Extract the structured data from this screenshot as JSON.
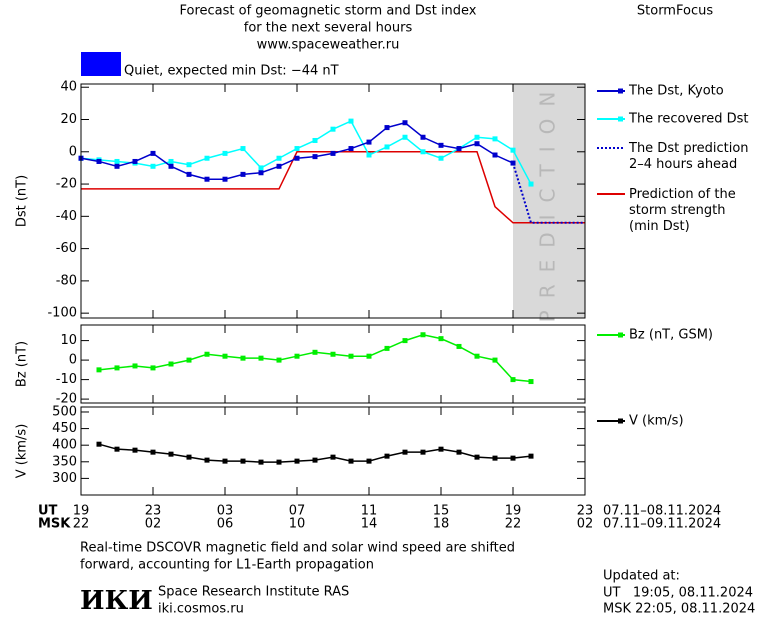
{
  "header": {
    "title": [
      "Forecast of geomagnetic storm and Dst index",
      "for the next several hours",
      "www.spaceweather.ru"
    ],
    "brand": "StormFocus",
    "status": {
      "label": "Quiet, expected min Dst: −44 nT",
      "color": "#0000ff"
    }
  },
  "chart_data": [
    {
      "type": "line",
      "ylabel": "Dst (nT)",
      "xlim": [
        0,
        28
      ],
      "ylim": [
        -103,
        42
      ],
      "yticks": [
        40,
        20,
        0,
        -20,
        -40,
        -60,
        -80,
        -100
      ],
      "shade": {
        "x": [
          24,
          28
        ],
        "label": "PREDICTION",
        "color": "#d9d9d9"
      },
      "series": [
        {
          "name": "The Dst, Kyoto",
          "color": "#0000cc",
          "marker": "square",
          "x": [
            0,
            1,
            2,
            3,
            4,
            5,
            6,
            7,
            8,
            9,
            10,
            11,
            12,
            13,
            14,
            15,
            16,
            17,
            18,
            19,
            20,
            21,
            22,
            23,
            24
          ],
          "values": [
            -4,
            -6,
            -9,
            -6,
            -1,
            -9,
            -14,
            -17,
            -17,
            -14,
            -13,
            -9,
            -4,
            -3,
            -1,
            2,
            6,
            15,
            18,
            9,
            4,
            2,
            5,
            -2,
            -7
          ]
        },
        {
          "name": "The recovered Dst",
          "color": "#00ffff",
          "marker": "square",
          "x": [
            0,
            1,
            2,
            3,
            4,
            5,
            6,
            7,
            8,
            9,
            10,
            11,
            12,
            13,
            14,
            15,
            16,
            17,
            18,
            19,
            20,
            21,
            22,
            23,
            24,
            25
          ],
          "values": [
            -4,
            -5,
            -6,
            -7,
            -9,
            -6,
            -8,
            -4,
            -1,
            2,
            -10,
            -4,
            2,
            7,
            14,
            19,
            -2,
            3,
            9,
            0,
            -4,
            2,
            9,
            8,
            1,
            -20
          ]
        },
        {
          "name": "The Dst prediction\n2–4 hours ahead",
          "color": "#0000cc",
          "dash": "dotted",
          "x": [
            24,
            25,
            28
          ],
          "values": [
            -7,
            -44,
            -44
          ]
        },
        {
          "name": "Prediction of the\nstorm strength\n(min Dst)",
          "color": "#dd0000",
          "x": [
            0,
            11,
            12,
            22,
            23,
            24,
            28
          ],
          "values": [
            -23,
            -23,
            0,
            0,
            -34,
            -44,
            -44
          ]
        }
      ]
    },
    {
      "type": "line",
      "ylabel": "Bz (nT)",
      "xlim": [
        0,
        28
      ],
      "ylim": [
        -22,
        18
      ],
      "yticks": [
        10,
        0,
        -10,
        -20
      ],
      "series": [
        {
          "name": "Bz (nT, GSM)",
          "color": "#00ee00",
          "marker": "square",
          "x": [
            1,
            2,
            3,
            4,
            5,
            6,
            7,
            8,
            9,
            10,
            11,
            12,
            13,
            14,
            15,
            16,
            17,
            18,
            19,
            20,
            21,
            22,
            23,
            24,
            25
          ],
          "values": [
            -5,
            -4,
            -3,
            -4,
            -2,
            0,
            3,
            2,
            1,
            1,
            0,
            2,
            4,
            3,
            2,
            2,
            6,
            10,
            13,
            11,
            7,
            2,
            0,
            -10,
            -11
          ]
        }
      ]
    },
    {
      "type": "line",
      "ylabel": "V (km/s)",
      "xlim": [
        0,
        28
      ],
      "ylim": [
        250,
        515
      ],
      "yticks": [
        500,
        450,
        400,
        350,
        300
      ],
      "xrow_labels": [
        "UT",
        "MSK"
      ],
      "xrow_dates": [
        "07.11–08.11.2024",
        "07.11–09.11.2024"
      ],
      "xticks": [
        {
          "value": 0,
          "label": "19"
        },
        {
          "value": 4,
          "label": "23"
        },
        {
          "value": 8,
          "label": "03"
        },
        {
          "value": 12,
          "label": "07"
        },
        {
          "value": 16,
          "label": "11"
        },
        {
          "value": 20,
          "label": "15"
        },
        {
          "value": 24,
          "label": "19"
        },
        {
          "value": 28,
          "label": "23"
        }
      ],
      "xticks_msk": [
        {
          "value": 0,
          "label": "22"
        },
        {
          "value": 4,
          "label": "02"
        },
        {
          "value": 8,
          "label": "06"
        },
        {
          "value": 12,
          "label": "10"
        },
        {
          "value": 16,
          "label": "14"
        },
        {
          "value": 20,
          "label": "18"
        },
        {
          "value": 24,
          "label": "22"
        },
        {
          "value": 28,
          "label": "02"
        }
      ],
      "series": [
        {
          "name": "V (km/s)",
          "color": "#000000",
          "marker": "square",
          "x": [
            1,
            2,
            3,
            4,
            5,
            6,
            7,
            8,
            9,
            10,
            11,
            12,
            13,
            14,
            15,
            16,
            17,
            18,
            19,
            20,
            21,
            22,
            23,
            24,
            25
          ],
          "values": [
            403,
            388,
            385,
            379,
            373,
            364,
            355,
            352,
            352,
            349,
            349,
            352,
            355,
            364,
            352,
            352,
            367,
            379,
            379,
            388,
            379,
            364,
            361,
            361,
            367
          ]
        }
      ]
    }
  ],
  "footer": {
    "note": [
      "Real-time DSCOVR magnetic field and solar wind speed are shifted",
      "forward, accounting for L1-Earth propagation"
    ],
    "logo": "ИКИ",
    "institute": "Space Research Institute RAS",
    "site": "iki.cosmos.ru",
    "updated": [
      "Updated at:",
      "UT   19:05, 08.11.2024",
      "MSK 22:05, 08.11.2024"
    ]
  }
}
